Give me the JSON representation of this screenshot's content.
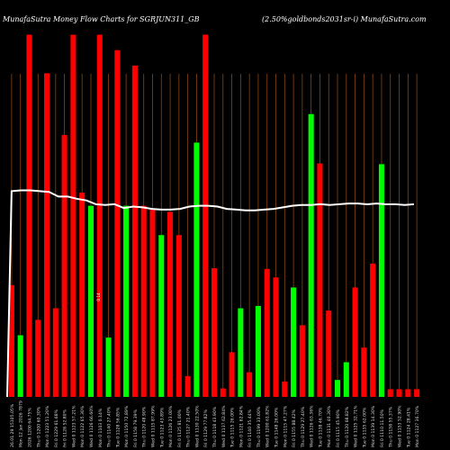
{
  "chart_data": {
    "type": "bar",
    "title_left": "MunafaSutra  Money Flow  Charts for SGRJUN311_GB",
    "title_right": "(2.50%goldbonds2031sr-i) MunafaSutra.com",
    "bar_label": "0.14",
    "bar_label_index": 10,
    "colors": {
      "up": "#00ff00",
      "down": "#ff0000",
      "line": "#ffffff",
      "gridline": "#8b4513",
      "background": "#000000",
      "text": "#dddddd"
    },
    "categories": [
      "26.01.29 15105.05%",
      "Mon 12 Jan 2026 7879",
      "2026 1200 64.75%",
      "Thu 0 1200 60.30%",
      "Mon 0 1223 51.20%",
      "Fri 0 1229 61.68%",
      "Fri 0 1128 52.80%",
      "Wed 0 1123 57.21%",
      "Mon 0 1122 65.30%",
      "Wed 0 1126 66.60%",
      "Mon 0 1103 0.14%",
      "Thu 0 1140 27.40%",
      "Tue 0 1128 56.85%",
      "Mon 0 1150 72.89%",
      "Fri 0 1158 79.39%",
      "Thu 0 1120 48.90%",
      "Wed 0 1115 87.99%",
      "Tue 0 1123 43.89%",
      "Mon 0 1126 23.00%",
      "Fri 0 1125 81.00%",
      "Thu 0 1127 21.40%",
      "Wed 0 1130 22.50%",
      "Fri 0 1129 77.82%",
      "Thu 0 1118 43.90%",
      "Wed 0 1137 62.84%",
      "Tue 0 1115 26.00%",
      "Mon 0 1121 62.84%",
      "Fri 0 1140 35.44%",
      "Thu 0 1199 33.00%",
      "Wed 0 1200 61.82%",
      "Tue 0 1148 26.00%",
      "Mon 0 1115 47.27%",
      "Fri 0 1155 88.42%",
      "Thu 0 1129 27.40%",
      "Wed 0 1126 63.36%",
      "Tue 0 1138 46.70%",
      "Mon 0 1131 40.30%",
      "Fri 0 1115 45.90%",
      "Thu 0 1120 68.82%",
      "Wed 0 1125 32.71%",
      "Tue 0 1135 62.00%",
      "Mon 0 1139 14.30%",
      "Fri 0 1110 11.50%",
      "Thu 0 1158 55.37%",
      "Wed 0 1153 52.90%",
      "Tue 0 1124 28.41%",
      "Mon 0 1127 36.70%"
    ],
    "series": [
      {
        "colors": [
          "down",
          "up",
          "down",
          "down",
          "down",
          "down",
          "down",
          "down",
          "down",
          "up",
          "down",
          "up",
          "down",
          "up",
          "down",
          "down",
          "down",
          "up",
          "down",
          "down",
          "down",
          "up",
          "down",
          "down",
          "down",
          "down",
          "up",
          "down",
          "up",
          "down",
          "down",
          "down",
          "up",
          "down",
          "up",
          "down",
          "down",
          "up",
          "up",
          "down",
          "down",
          "down",
          "up",
          "down",
          "down",
          "down",
          "down"
        ],
        "values": [
          145,
          80,
          470,
          100,
          420,
          115,
          340,
          470,
          265,
          248,
          470,
          77,
          450,
          248,
          430,
          248,
          243,
          210,
          240,
          210,
          27,
          330,
          470,
          167,
          11,
          58,
          115,
          32,
          118,
          166,
          155,
          20,
          142,
          93,
          367,
          303,
          112,
          22,
          45,
          142,
          64,
          173,
          302,
          10,
          10,
          10,
          10
        ]
      }
    ],
    "line_series": [
      267,
      268,
      268,
      267,
      266,
      260,
      260,
      257,
      255,
      250,
      249,
      250,
      245,
      247,
      246,
      244,
      243,
      243,
      244,
      247,
      248,
      248,
      247,
      244,
      243,
      242,
      242,
      243,
      244,
      246,
      248,
      249,
      249,
      250,
      249,
      250,
      251,
      251,
      250,
      251,
      250,
      250,
      249,
      250
    ],
    "line_start": 0,
    "ylim": [
      0,
      480
    ],
    "line_ylim": [
      0,
      480
    ],
    "gridlines": "vertical"
  }
}
